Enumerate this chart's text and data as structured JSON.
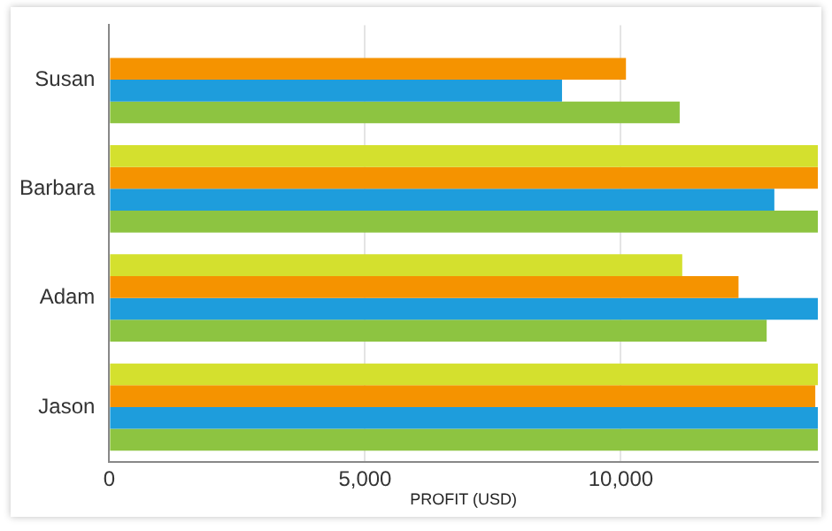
{
  "chart_data": {
    "type": "bar",
    "orientation": "horizontal",
    "xlabel": "PROFIT (USD)",
    "categories": [
      "Susan",
      "Barbara",
      "Adam",
      "Jason"
    ],
    "series": [
      {
        "color": "#d4e02e",
        "values": [
          null,
          13850,
          11200,
          13850
        ]
      },
      {
        "color": "#f59300",
        "values": [
          10100,
          13850,
          12300,
          13800
        ]
      },
      {
        "color": "#1e9ddc",
        "values": [
          8850,
          13000,
          13850,
          13850
        ]
      },
      {
        "color": "#8dc441",
        "values": [
          11150,
          13850,
          12850,
          13850
        ]
      }
    ],
    "xlim": [
      0,
      13850
    ],
    "xticks": [
      {
        "value": 0,
        "label": "0"
      },
      {
        "value": 5000,
        "label": "5,000"
      },
      {
        "value": 10000,
        "label": "10,000"
      }
    ],
    "grid": "x",
    "legend": false
  }
}
